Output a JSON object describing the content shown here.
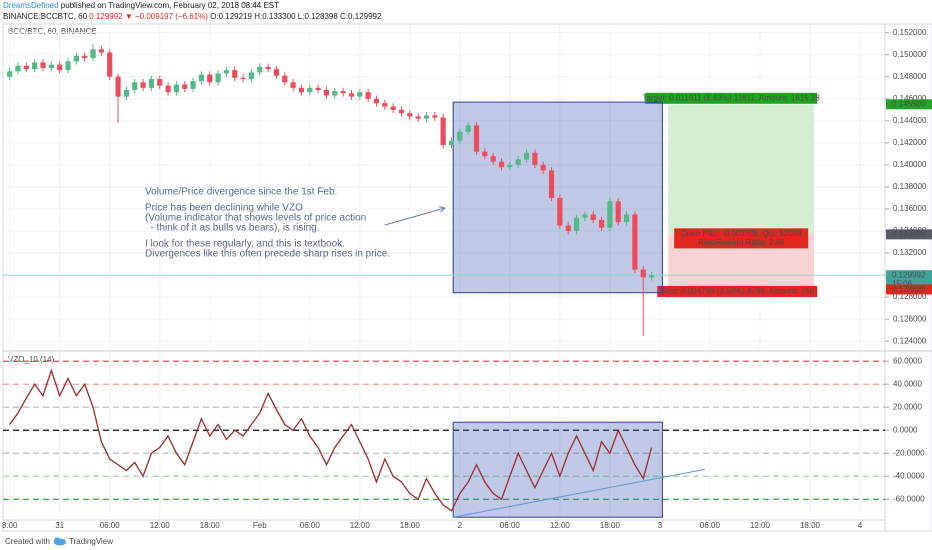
{
  "header": {
    "author": "DreamsDefined",
    "published": " published on TradingView.com, February 02, 2018 08:44 EST",
    "symbol": "BINANCE:BCCBTC, 60 ",
    "last": "0.129992 ",
    "change": "▼ −0.009197 (−6.61%) ",
    "ohlc": "O:0.129219 H:0.133300 L:0.128398 C:0.129992"
  },
  "chart_data": [
    {
      "type": "candlestick",
      "title": "BCC/BTC, 60, BINANCE",
      "up_color": "#53b987",
      "down_color": "#eb4d5c",
      "x": [
        0,
        1,
        2,
        3,
        4,
        5,
        6,
        7,
        8,
        9,
        10,
        11,
        12,
        13,
        14,
        15,
        16,
        17,
        18,
        19,
        20,
        21,
        22,
        23,
        24,
        25,
        26,
        27,
        28,
        29,
        30,
        31,
        32,
        33,
        34,
        35,
        36,
        37,
        38,
        39,
        40,
        41,
        42,
        43,
        44,
        45,
        46,
        47,
        48,
        49,
        50,
        51,
        52,
        53,
        54,
        55,
        56,
        57,
        58,
        59,
        60,
        61,
        62,
        63,
        64,
        65,
        66,
        67,
        68,
        69,
        70,
        71,
        72,
        73,
        74,
        75,
        76,
        77
      ],
      "open": [
        0.148,
        0.1485,
        0.149,
        0.1487,
        0.1493,
        0.1488,
        0.1491,
        0.1486,
        0.1494,
        0.1499,
        0.1497,
        0.1505,
        0.1502,
        0.148,
        0.1462,
        0.1468,
        0.1475,
        0.147,
        0.1478,
        0.1472,
        0.1466,
        0.1473,
        0.1469,
        0.1476,
        0.1482,
        0.1475,
        0.1483,
        0.1486,
        0.1479,
        0.1478,
        0.1484,
        0.1489,
        0.1487,
        0.1481,
        0.1475,
        0.147,
        0.1466,
        0.147,
        0.1468,
        0.1463,
        0.1467,
        0.1465,
        0.1462,
        0.1466,
        0.146,
        0.1456,
        0.1453,
        0.145,
        0.1447,
        0.1444,
        0.1442,
        0.1445,
        0.1443,
        0.1418,
        0.1422,
        0.143,
        0.1436,
        0.1412,
        0.1408,
        0.1403,
        0.1398,
        0.14,
        0.1405,
        0.1411,
        0.14,
        0.1395,
        0.137,
        0.1345,
        0.134,
        0.1352,
        0.1355,
        0.135,
        0.1343,
        0.1367,
        0.1348,
        0.1355,
        0.1305,
        0.1298
      ],
      "high": [
        0.1488,
        0.1493,
        0.1493,
        0.1496,
        0.1496,
        0.1494,
        0.1494,
        0.1497,
        0.1502,
        0.1502,
        0.151,
        0.1508,
        0.1505,
        0.1483,
        0.1471,
        0.1478,
        0.1478,
        0.1481,
        0.1481,
        0.1475,
        0.1476,
        0.1476,
        0.1479,
        0.1485,
        0.1485,
        0.1486,
        0.1489,
        0.1489,
        0.1482,
        0.1487,
        0.1492,
        0.1492,
        0.149,
        0.1484,
        0.1478,
        0.1473,
        0.1473,
        0.1473,
        0.1471,
        0.147,
        0.147,
        0.1468,
        0.1469,
        0.1469,
        0.1463,
        0.1459,
        0.1456,
        0.1453,
        0.145,
        0.1447,
        0.1448,
        0.1448,
        0.1446,
        0.1425,
        0.1433,
        0.1439,
        0.1439,
        0.1415,
        0.1411,
        0.1406,
        0.1403,
        0.1408,
        0.1414,
        0.1414,
        0.1403,
        0.1398,
        0.1373,
        0.1348,
        0.1355,
        0.1358,
        0.1358,
        0.1353,
        0.137,
        0.137,
        0.1358,
        0.1358,
        0.1308,
        0.1303
      ],
      "low": [
        0.1477,
        0.1482,
        0.1484,
        0.1484,
        0.1485,
        0.1485,
        0.1483,
        0.1483,
        0.1491,
        0.1494,
        0.1494,
        0.1499,
        0.1477,
        0.1438,
        0.1459,
        0.1465,
        0.1467,
        0.1467,
        0.1469,
        0.1463,
        0.1463,
        0.1466,
        0.1466,
        0.1473,
        0.1472,
        0.1472,
        0.148,
        0.1476,
        0.1475,
        0.1475,
        0.1481,
        0.1484,
        0.1478,
        0.1472,
        0.1467,
        0.1463,
        0.1463,
        0.1465,
        0.146,
        0.146,
        0.1462,
        0.1459,
        0.1459,
        0.1457,
        0.1453,
        0.145,
        0.1447,
        0.1444,
        0.1441,
        0.1439,
        0.1439,
        0.144,
        0.1415,
        0.1415,
        0.1419,
        0.1427,
        0.1409,
        0.1405,
        0.14,
        0.1395,
        0.1395,
        0.1397,
        0.1402,
        0.1397,
        0.1392,
        0.1367,
        0.1342,
        0.1337,
        0.1337,
        0.1349,
        0.1347,
        0.134,
        0.134,
        0.1345,
        0.1345,
        0.1302,
        0.1245,
        0.1295
      ],
      "close": [
        0.1485,
        0.149,
        0.1487,
        0.1493,
        0.1488,
        0.1491,
        0.1486,
        0.1494,
        0.1499,
        0.1497,
        0.1505,
        0.1502,
        0.148,
        0.1462,
        0.1468,
        0.1475,
        0.147,
        0.1478,
        0.1472,
        0.1466,
        0.1473,
        0.1469,
        0.1476,
        0.1482,
        0.1475,
        0.1483,
        0.1486,
        0.1479,
        0.1478,
        0.1484,
        0.1489,
        0.1487,
        0.1481,
        0.1475,
        0.147,
        0.1466,
        0.147,
        0.1468,
        0.1463,
        0.1467,
        0.1465,
        0.1462,
        0.1466,
        0.146,
        0.1456,
        0.1453,
        0.145,
        0.1447,
        0.1444,
        0.1442,
        0.1445,
        0.1443,
        0.1418,
        0.1422,
        0.143,
        0.1436,
        0.1412,
        0.1408,
        0.1403,
        0.1398,
        0.14,
        0.1405,
        0.1411,
        0.14,
        0.1395,
        0.137,
        0.1345,
        0.134,
        0.1352,
        0.1355,
        0.135,
        0.1343,
        0.1367,
        0.1348,
        0.1355,
        0.1305,
        0.1298,
        0.129992
      ],
      "xlim": [
        -0.8,
        105
      ],
      "ylim": [
        0.1232,
        0.1527
      ],
      "grid": true,
      "yticks": [
        {
          "value": 0.124,
          "label": "0.124000"
        },
        {
          "value": 0.126,
          "label": "0.126000"
        },
        {
          "value": 0.128,
          "label": "0.128000"
        },
        {
          "value": 0.13,
          "label": "0.130000"
        },
        {
          "value": 0.132,
          "label": "0.132000"
        },
        {
          "value": 0.134,
          "label": "0.134000"
        },
        {
          "value": 0.136,
          "label": "0.136000"
        },
        {
          "value": 0.138,
          "label": "0.138000"
        },
        {
          "value": 0.14,
          "label": "0.140000"
        },
        {
          "value": 0.142,
          "label": "0.142000"
        },
        {
          "value": 0.144,
          "label": "0.144000"
        },
        {
          "value": 0.146,
          "label": "0.146000"
        },
        {
          "value": 0.148,
          "label": "0.148000"
        },
        {
          "value": 0.15,
          "label": "0.150000"
        },
        {
          "value": 0.152,
          "label": "0.152000"
        }
      ],
      "price_labels": [
        {
          "value": 0.1455,
          "label": "0.145500",
          "color": "#27a12a"
        },
        {
          "value": 0.133696,
          "label": "0.133696",
          "color": "#555a63"
        },
        {
          "value": 0.129992,
          "label": "0.129992",
          "color": "#3fa39a",
          "sub": "15:06"
        },
        {
          "value": 0.128696,
          "label": "0.128696",
          "color": "#e0271f"
        }
      ],
      "position": {
        "x": [
          79,
          96.5
        ],
        "target": 0.1455,
        "entry": 0.133696,
        "stop": 0.128696,
        "target_label": "Target: 0.011811 (8.83%) 11811, Amount: 1615.28",
        "pnl_label": "Open P&L: -0.003706, Qty: 52094",
        "ratio_label": "Risk/Reward Ratio: 2.46",
        "stop_label": "Stop: 0.004799 (3.59%) 4799, Amount: 750"
      },
      "boxes": [
        {
          "x": [
            53.2,
            78.3
          ],
          "y": [
            0.1457,
            0.1284
          ]
        }
      ],
      "arrow": {
        "x": [
          45,
          52.2
        ],
        "y": [
          0.13455,
          0.13609
        ]
      },
      "annotation": [
        [
          "Volume/Price divergence since the 1st Feb."
        ],
        [
          "Price has been declining while VZO",
          "(Volume indicator that shows levels of price action",
          "  - think of it as bulls vs bears), is rising."
        ],
        [
          "I look for these regularly, and this is textbook.",
          "Divergences like this often precede sharp rises in price."
        ]
      ]
    },
    {
      "type": "line",
      "title": "VZO_10 (14)",
      "color": "#9c2b2b",
      "x": [
        0,
        1,
        2,
        3,
        4,
        5,
        6,
        7,
        8,
        9,
        10,
        11,
        12,
        13,
        14,
        15,
        16,
        17,
        18,
        19,
        20,
        21,
        22,
        23,
        24,
        25,
        26,
        27,
        28,
        29,
        30,
        31,
        32,
        33,
        34,
        35,
        36,
        37,
        38,
        39,
        40,
        41,
        42,
        43,
        44,
        45,
        46,
        47,
        48,
        49,
        50,
        51,
        52,
        53,
        54,
        55,
        56,
        57,
        58,
        59,
        60,
        61,
        62,
        63,
        64,
        65,
        66,
        67,
        68,
        69,
        70,
        71,
        72,
        73,
        74,
        75,
        76,
        77
      ],
      "values": [
        5,
        15,
        28,
        40,
        30,
        52,
        30,
        45,
        30,
        40,
        20,
        -10,
        -25,
        -30,
        -35,
        -28,
        -40,
        -20,
        -15,
        -5,
        -20,
        -30,
        -10,
        10,
        -5,
        5,
        -8,
        0,
        -5,
        5,
        15,
        32,
        18,
        5,
        0,
        10,
        -5,
        -15,
        -30,
        -15,
        -5,
        5,
        -10,
        -25,
        -45,
        -25,
        -40,
        -45,
        -55,
        -60,
        -42,
        -55,
        -65,
        -70,
        -55,
        -45,
        -30,
        -45,
        -55,
        -60,
        -40,
        -20,
        -35,
        -50,
        -35,
        -20,
        -40,
        -20,
        -5,
        -20,
        -35,
        -10,
        -20,
        0,
        -15,
        -30,
        -42,
        -15
      ],
      "xlim": [
        -0.8,
        105
      ],
      "ylim": [
        -78,
        68
      ],
      "yticks": [
        {
          "value": -60,
          "label": "-60.0000"
        },
        {
          "value": -40,
          "label": "-40.0000"
        },
        {
          "value": -20,
          "label": "-20.0000"
        },
        {
          "value": 0,
          "label": "0.0000"
        },
        {
          "value": 20,
          "label": "20.0000"
        },
        {
          "value": 40,
          "label": "40.0000"
        },
        {
          "value": 60,
          "label": "60.0000"
        }
      ],
      "levels": [
        {
          "value": 60,
          "color": "#e53935"
        },
        {
          "value": 40,
          "color": "#ef9a9a"
        },
        {
          "value": 20,
          "color": "#d7b5b5"
        },
        {
          "value": 0,
          "color": "#111111"
        },
        {
          "value": -20,
          "color": "#b8b8b8"
        },
        {
          "value": -40,
          "color": "#a5d6a7"
        },
        {
          "value": -60,
          "color": "#2e9d36"
        }
      ],
      "xticks": [
        {
          "value": 0,
          "label": "8:00"
        },
        {
          "value": 6,
          "label": "31"
        },
        {
          "value": 12,
          "label": "06:00"
        },
        {
          "value": 18,
          "label": "12:00"
        },
        {
          "value": 24,
          "label": "18:00"
        },
        {
          "value": 30,
          "label": "Feb"
        },
        {
          "value": 36,
          "label": "06:00"
        },
        {
          "value": 42,
          "label": "12:00"
        },
        {
          "value": 48,
          "label": "18:00"
        },
        {
          "value": 54,
          "label": "2"
        },
        {
          "value": 60,
          "label": "06:00"
        },
        {
          "value": 66,
          "label": "12:00"
        },
        {
          "value": 72,
          "label": "18:00"
        },
        {
          "value": 78,
          "label": "3"
        },
        {
          "value": 84,
          "label": "06:00"
        },
        {
          "value": 90,
          "label": "12:00"
        },
        {
          "value": 96,
          "label": "18:00"
        },
        {
          "value": 102,
          "label": "4"
        }
      ],
      "boxes": [
        {
          "x": [
            53.2,
            78.3
          ],
          "y": [
            7,
            -75.6
          ]
        }
      ],
      "trendline": {
        "x": [
          53.2,
          83.4
        ],
        "y": [
          -75.6,
          -34
        ]
      }
    }
  ],
  "footer": {
    "created": "Created with",
    "brand": "TradingView"
  }
}
